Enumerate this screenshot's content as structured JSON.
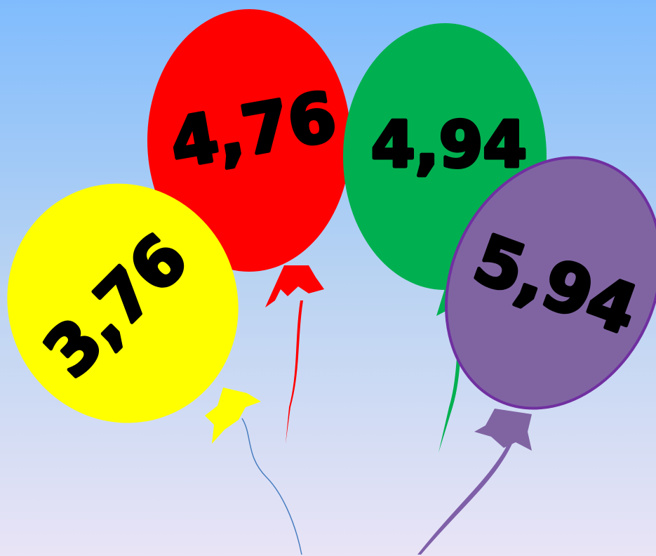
{
  "balloons": [
    {
      "label": "3,76"
    },
    {
      "label": "4,76"
    },
    {
      "label": "4,94"
    },
    {
      "label": "5,94"
    }
  ]
}
